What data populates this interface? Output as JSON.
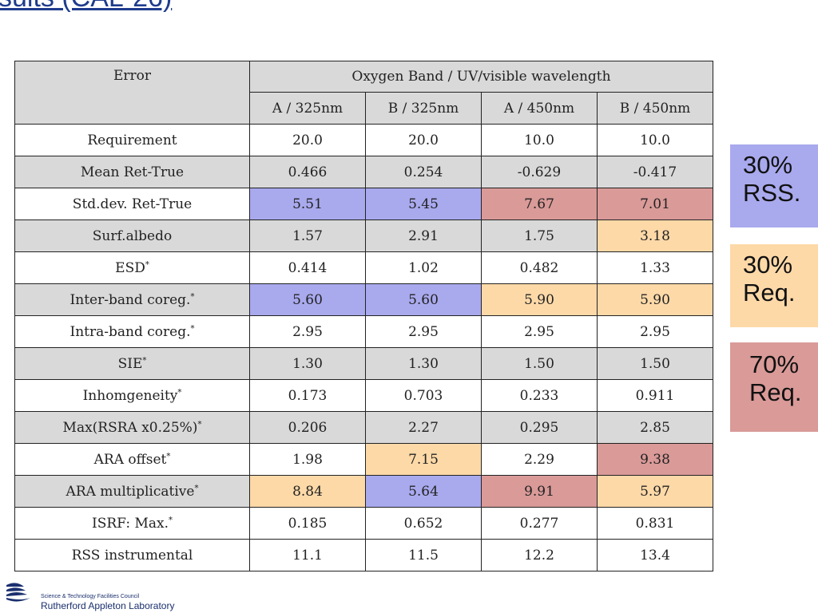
{
  "slide": {
    "title": "sults (CAL-26)"
  },
  "table": {
    "header_error": "Error",
    "header_group": "Oxygen Band / UV/visible wavelength",
    "subheaders": [
      "A / 325nm",
      "B / 325nm",
      "A / 450nm",
      "B / 450nm"
    ],
    "rows": [
      {
        "label": "Requirement",
        "sup": "",
        "values": [
          "20.0",
          "20.0",
          "10.0",
          "10.0"
        ]
      },
      {
        "label": "Mean Ret-True",
        "sup": "",
        "values": [
          "0.466",
          "0.254",
          "-0.629",
          "-0.417"
        ]
      },
      {
        "label": "Std.dev. Ret-True",
        "sup": "",
        "values": [
          "5.51",
          "5.45",
          "7.67",
          "7.01"
        ]
      },
      {
        "label": "Surf.albedo",
        "sup": "",
        "values": [
          "1.57",
          "2.91",
          "1.75",
          "3.18"
        ]
      },
      {
        "label": "ESD",
        "sup": "*",
        "values": [
          "0.414",
          "1.02",
          "0.482",
          "1.33"
        ]
      },
      {
        "label": "Inter-band coreg.",
        "sup": "*",
        "values": [
          "5.60",
          "5.60",
          "5.90",
          "5.90"
        ]
      },
      {
        "label": "Intra-band coreg.",
        "sup": "*",
        "values": [
          "2.95",
          "2.95",
          "2.95",
          "2.95"
        ]
      },
      {
        "label": "SIE",
        "sup": "*",
        "values": [
          "1.30",
          "1.30",
          "1.50",
          "1.50"
        ]
      },
      {
        "label": "Inhomgeneity",
        "sup": "*",
        "values": [
          "0.173",
          "0.703",
          "0.233",
          "0.911"
        ]
      },
      {
        "label": "Max(RSRA x0.25%)",
        "sup": "*",
        "values": [
          "0.206",
          "2.27",
          "0.295",
          "2.85"
        ]
      },
      {
        "label": "ARA offset",
        "sup": "*",
        "values": [
          "1.98",
          "7.15",
          "2.29",
          "9.38"
        ]
      },
      {
        "label": "ARA multiplicative",
        "sup": "*",
        "values": [
          "8.84",
          "5.64",
          "9.91",
          "5.97"
        ]
      },
      {
        "label": "ISRF: Max.",
        "sup": "*",
        "values": [
          "0.185",
          "0.652",
          "0.277",
          "0.831"
        ]
      },
      {
        "label": "RSS instrumental",
        "sup": "",
        "values": [
          "11.1",
          "11.5",
          "12.2",
          "13.4"
        ]
      }
    ]
  },
  "legend": {
    "rss30": {
      "line1": "30%",
      "line2": "RSS."
    },
    "req30": {
      "line1": "30%",
      "line2": "Req."
    },
    "req70": {
      "line1": "70%",
      "line2": "Req."
    }
  },
  "footer": {
    "council": "Science & Technology Facilities Council",
    "lab": "Rutherford Appleton Laboratory"
  },
  "colors": {
    "header_gray": "#d9d9d9",
    "rss30_blue": "#a9a9ee",
    "req30_orange": "#fdd9a8",
    "req70_red": "#d99a98",
    "title_blue": "#1f3c8c"
  }
}
